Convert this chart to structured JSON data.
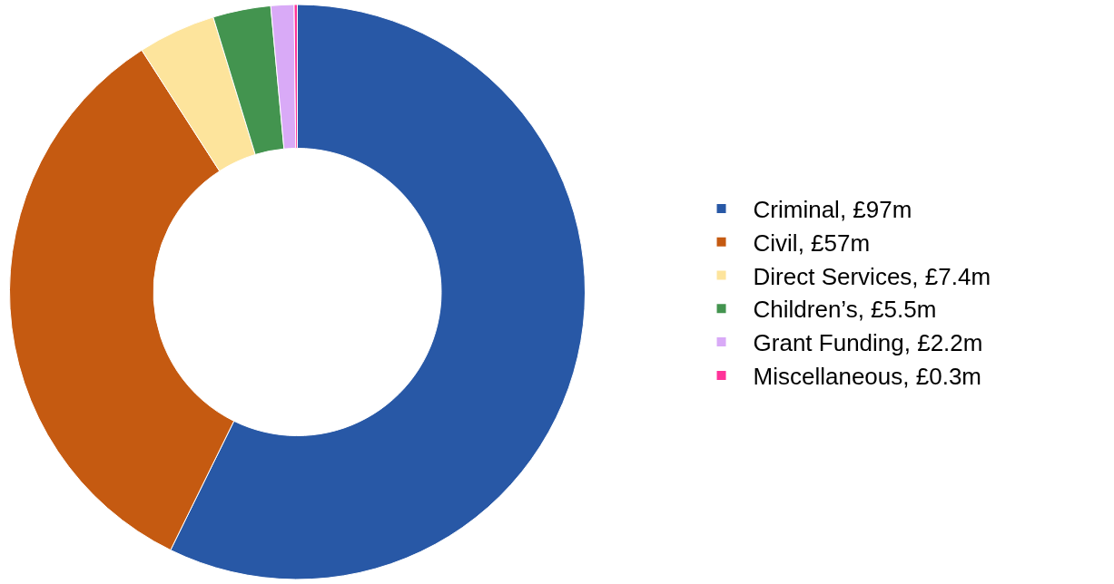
{
  "chart_data": {
    "type": "donut",
    "categories": [
      "Criminal, £97m",
      "Civil, £57m",
      "Direct Services, £7.4m",
      "Children’s, £5.5m",
      "Grant Funding, £2.2m",
      "Miscellaneous, £0.3m"
    ],
    "values": [
      97,
      57,
      7.4,
      5.5,
      2.2,
      0.3
    ],
    "colors": [
      "#2858a6",
      "#c55a11",
      "#fde49c",
      "#43944f",
      "#d9aaf7",
      "#ff3399"
    ],
    "legend": "right"
  }
}
